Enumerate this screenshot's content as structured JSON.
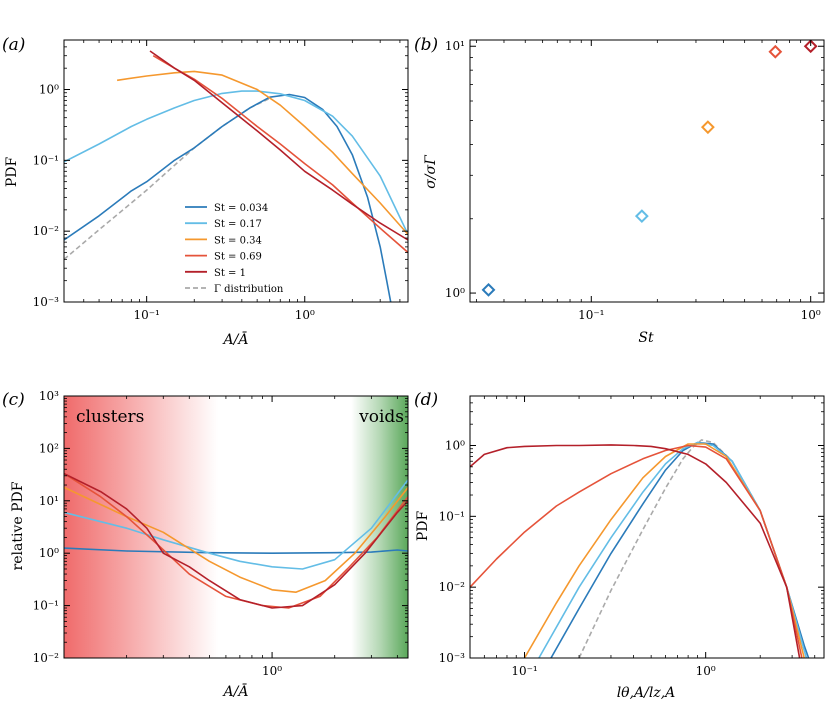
{
  "colors": {
    "St0.034": "#2b7bba",
    "St0.17": "#63bde6",
    "St0.34": "#f5982e",
    "St0.69": "#e5533a",
    "St1": "#b4202a",
    "gamma": "#aaaaaa",
    "clusters": "#f06b6b",
    "voids": "#5aa85a"
  },
  "chart_data": [
    {
      "id": "a",
      "type": "line",
      "panel_label": "(a)",
      "xlabel": "A/Ā",
      "ylabel": "PDF",
      "xscale": "log",
      "yscale": "log",
      "xlim": [
        0.03,
        4.5
      ],
      "ylim": [
        0.001,
        5
      ],
      "xticks": [
        {
          "v": 0.1,
          "label": "10⁻¹"
        },
        {
          "v": 1,
          "label": "10⁰"
        }
      ],
      "yticks": [
        {
          "v": 0.001,
          "label": "10⁻³"
        },
        {
          "v": 0.01,
          "label": "10⁻²"
        },
        {
          "v": 0.1,
          "label": "10⁻¹"
        },
        {
          "v": 1,
          "label": "10⁰"
        }
      ],
      "legend": {
        "position": "lower-center",
        "entries": [
          {
            "label": "St = 0.034",
            "color_key": "St0.034",
            "dash": false
          },
          {
            "label": "St = 0.17",
            "color_key": "St0.17",
            "dash": false
          },
          {
            "label": "St = 0.34",
            "color_key": "St0.34",
            "dash": false
          },
          {
            "label": "St = 0.69",
            "color_key": "St0.69",
            "dash": false
          },
          {
            "label": "St = 1",
            "color_key": "St1",
            "dash": false
          },
          {
            "label": "Γ distribution",
            "color_key": "gamma",
            "dash": true
          }
        ]
      },
      "series": [
        {
          "name": "gamma",
          "color_key": "gamma",
          "dash": true,
          "x": [
            0.03,
            0.05,
            0.08,
            0.1,
            0.15,
            0.2,
            0.3,
            0.45,
            0.6
          ],
          "y": [
            0.004,
            0.0105,
            0.025,
            0.038,
            0.085,
            0.15,
            0.3,
            0.55,
            0.75
          ]
        },
        {
          "name": "St = 0.034",
          "color_key": "St0.034",
          "dash": false,
          "x": [
            0.03,
            0.05,
            0.08,
            0.1,
            0.15,
            0.2,
            0.3,
            0.45,
            0.6,
            0.8,
            1.0,
            1.3,
            1.6,
            2.0,
            2.5,
            3.0,
            3.3,
            3.5
          ],
          "y": [
            0.0075,
            0.0165,
            0.037,
            0.05,
            0.1,
            0.15,
            0.3,
            0.55,
            0.78,
            0.85,
            0.77,
            0.52,
            0.3,
            0.12,
            0.03,
            0.006,
            0.002,
            0.001
          ]
        },
        {
          "name": "St = 0.17",
          "color_key": "St0.17",
          "dash": false,
          "x": [
            0.03,
            0.05,
            0.08,
            0.1,
            0.15,
            0.2,
            0.3,
            0.4,
            0.5,
            0.7,
            1.0,
            1.5,
            2.0,
            3.0,
            4.5
          ],
          "y": [
            0.095,
            0.17,
            0.3,
            0.38,
            0.55,
            0.7,
            0.88,
            0.95,
            0.95,
            0.87,
            0.7,
            0.42,
            0.22,
            0.06,
            0.009
          ]
        },
        {
          "name": "St = 0.34",
          "color_key": "St0.34",
          "dash": false,
          "x": [
            0.065,
            0.1,
            0.15,
            0.2,
            0.3,
            0.5,
            0.7,
            1.0,
            1.5,
            2.0,
            3.0,
            4.5
          ],
          "y": [
            1.35,
            1.55,
            1.72,
            1.8,
            1.6,
            1.0,
            0.6,
            0.3,
            0.13,
            0.065,
            0.025,
            0.009
          ]
        },
        {
          "name": "St = 0.69",
          "color_key": "St0.69",
          "dash": false,
          "x": [
            0.11,
            0.15,
            0.2,
            0.3,
            0.5,
            0.7,
            1.0,
            1.5,
            2.0,
            3.0,
            4.5
          ],
          "y": [
            3.0,
            2.0,
            1.4,
            0.75,
            0.3,
            0.17,
            0.09,
            0.045,
            0.025,
            0.011,
            0.005
          ]
        },
        {
          "name": "St = 1",
          "color_key": "St1",
          "dash": false,
          "x": [
            0.105,
            0.15,
            0.2,
            0.3,
            0.5,
            0.7,
            1.0,
            1.5,
            2.0,
            3.0,
            4.5
          ],
          "y": [
            3.5,
            2.0,
            1.35,
            0.65,
            0.26,
            0.14,
            0.07,
            0.038,
            0.024,
            0.013,
            0.0075
          ]
        }
      ]
    },
    {
      "id": "b",
      "type": "scatter",
      "panel_label": "(b)",
      "xlabel": "St",
      "ylabel": "σ/σΓ",
      "xscale": "log",
      "yscale": "log",
      "xlim": [
        0.028,
        1.15
      ],
      "ylim": [
        0.92,
        10.6
      ],
      "xticks": [
        {
          "v": 0.1,
          "label": "10⁻¹"
        },
        {
          "v": 1,
          "label": "10⁰"
        }
      ],
      "yticks": [
        {
          "v": 1,
          "label": "10⁰"
        },
        {
          "v": 10,
          "label": "10¹"
        }
      ],
      "points": [
        {
          "x": 0.034,
          "y": 1.03,
          "color_key": "St0.034"
        },
        {
          "x": 0.17,
          "y": 2.05,
          "color_key": "St0.17"
        },
        {
          "x": 0.34,
          "y": 4.7,
          "color_key": "St0.34"
        },
        {
          "x": 0.69,
          "y": 9.5,
          "color_key": "St0.69"
        },
        {
          "x": 1.0,
          "y": 10.0,
          "color_key": "St1"
        }
      ]
    },
    {
      "id": "c",
      "type": "line",
      "panel_label": "(c)",
      "xlabel": "A/Ā",
      "ylabel": "relative PDF",
      "xscale": "log",
      "yscale": "log",
      "xlim": [
        0.1,
        4.5
      ],
      "ylim": [
        0.01,
        1000
      ],
      "xticks": [
        {
          "v": 1,
          "label": "10⁰"
        }
      ],
      "yticks": [
        {
          "v": 0.01,
          "label": "10⁻²"
        },
        {
          "v": 0.1,
          "label": "10⁻¹"
        },
        {
          "v": 1,
          "label": "10⁰"
        },
        {
          "v": 10,
          "label": "10¹"
        },
        {
          "v": 100,
          "label": "10²"
        },
        {
          "v": 1000,
          "label": "10³"
        }
      ],
      "regions": [
        {
          "label": "clusters",
          "from": 0.1,
          "to": 0.55,
          "color_key": "clusters",
          "fade": "right"
        },
        {
          "label": "voids",
          "from": 2.4,
          "to": 4.5,
          "color_key": "voids",
          "fade": "left"
        }
      ],
      "series": [
        {
          "name": "St = 0.034",
          "color_key": "St0.034",
          "x": [
            0.1,
            0.2,
            0.5,
            1.0,
            2.0,
            3.0,
            4.0,
            4.5
          ],
          "y": [
            1.25,
            1.1,
            1.02,
            1.0,
            1.02,
            1.05,
            1.15,
            1.1
          ]
        },
        {
          "name": "St = 0.17",
          "color_key": "St0.17",
          "x": [
            0.1,
            0.2,
            0.3,
            0.5,
            0.7,
            1.0,
            1.4,
            2.0,
            3.0,
            4.5
          ],
          "y": [
            6,
            3.0,
            1.8,
            1.0,
            0.7,
            0.55,
            0.5,
            0.75,
            3.0,
            25
          ]
        },
        {
          "name": "St = 0.34",
          "color_key": "St0.34",
          "x": [
            0.1,
            0.15,
            0.2,
            0.3,
            0.5,
            0.7,
            1.0,
            1.3,
            1.8,
            2.5,
            3.5,
            4.5
          ],
          "y": [
            18,
            8.5,
            5,
            2.5,
            0.7,
            0.35,
            0.2,
            0.18,
            0.3,
            1.0,
            5.0,
            18
          ]
        },
        {
          "name": "St = 0.69",
          "color_key": "St0.69",
          "x": [
            0.1,
            0.15,
            0.2,
            0.28,
            0.4,
            0.6,
            0.9,
            1.2,
            1.7,
            2.3,
            3.2,
            4.5
          ],
          "y": [
            33,
            12,
            5,
            1.5,
            0.4,
            0.15,
            0.1,
            0.09,
            0.15,
            0.5,
            2.0,
            12
          ]
        },
        {
          "name": "St = 1",
          "color_key": "St1",
          "x": [
            0.1,
            0.15,
            0.2,
            0.25,
            0.3,
            0.4,
            0.5,
            0.7,
            1.0,
            1.4,
            2.0,
            2.8,
            4.0,
            4.5
          ],
          "y": [
            33,
            15,
            7,
            3,
            1.0,
            0.55,
            0.3,
            0.13,
            0.09,
            0.1,
            0.25,
            1.0,
            6,
            10
          ]
        }
      ]
    },
    {
      "id": "d",
      "type": "line",
      "panel_label": "(d)",
      "xlabel": "lθ,A/lz,A",
      "ylabel": "PDF",
      "xscale": "log",
      "yscale": "log",
      "xlim": [
        0.05,
        4.5
      ],
      "ylim": [
        0.001,
        5
      ],
      "xticks": [
        {
          "v": 0.1,
          "label": "10⁻¹"
        },
        {
          "v": 1,
          "label": "10⁰"
        }
      ],
      "yticks": [
        {
          "v": 0.001,
          "label": "10⁻³"
        },
        {
          "v": 0.01,
          "label": "10⁻²"
        },
        {
          "v": 0.1,
          "label": "10⁻¹"
        },
        {
          "v": 1,
          "label": "10⁰"
        }
      ],
      "series": [
        {
          "name": "gamma",
          "color_key": "gamma",
          "dash": true,
          "x": [
            0.2,
            0.3,
            0.45,
            0.6,
            0.75,
            0.85,
            0.95,
            1.1,
            1.4,
            2.0,
            2.8,
            3.6
          ],
          "y": [
            0.001,
            0.009,
            0.065,
            0.25,
            0.65,
            0.95,
            1.2,
            1.1,
            0.6,
            0.12,
            0.01,
            0.001
          ]
        },
        {
          "name": "St = 0.034",
          "color_key": "St0.034",
          "dash": false,
          "x": [
            0.14,
            0.2,
            0.3,
            0.45,
            0.6,
            0.75,
            0.9,
            1.1,
            1.4,
            2.0,
            2.8,
            3.5,
            3.7
          ],
          "y": [
            0.001,
            0.005,
            0.03,
            0.15,
            0.45,
            0.85,
            1.1,
            1.05,
            0.6,
            0.12,
            0.01,
            0.0015,
            0.001
          ]
        },
        {
          "name": "St = 0.17",
          "color_key": "St0.17",
          "dash": false,
          "x": [
            0.12,
            0.2,
            0.3,
            0.45,
            0.6,
            0.75,
            0.9,
            1.1,
            1.4,
            2.0,
            2.8,
            3.6
          ],
          "y": [
            0.001,
            0.01,
            0.05,
            0.22,
            0.55,
            0.9,
            1.1,
            1.0,
            0.6,
            0.12,
            0.01,
            0.001
          ]
        },
        {
          "name": "St = 0.34",
          "color_key": "St0.34",
          "dash": false,
          "x": [
            0.1,
            0.15,
            0.2,
            0.3,
            0.45,
            0.6,
            0.8,
            1.0,
            1.3,
            2.0,
            2.8,
            3.5
          ],
          "y": [
            0.001,
            0.006,
            0.02,
            0.09,
            0.35,
            0.7,
            1.05,
            1.05,
            0.7,
            0.12,
            0.01,
            0.001
          ]
        },
        {
          "name": "St = 0.69",
          "color_key": "St0.69",
          "dash": false,
          "x": [
            0.05,
            0.07,
            0.1,
            0.15,
            0.2,
            0.3,
            0.45,
            0.6,
            0.8,
            1.0,
            1.3,
            2.0,
            2.8,
            3.4
          ],
          "y": [
            0.01,
            0.025,
            0.06,
            0.14,
            0.22,
            0.4,
            0.65,
            0.85,
            1.0,
            0.95,
            0.65,
            0.12,
            0.01,
            0.001
          ]
        },
        {
          "name": "St = 1",
          "color_key": "St1",
          "dash": false,
          "x": [
            0.05,
            0.06,
            0.08,
            0.1,
            0.15,
            0.2,
            0.3,
            0.4,
            0.5,
            0.6,
            0.8,
            1.0,
            1.3,
            2.0,
            2.8,
            3.3
          ],
          "y": [
            0.5,
            0.75,
            0.93,
            0.97,
            1.0,
            1.0,
            1.02,
            1.0,
            0.97,
            0.9,
            0.75,
            0.55,
            0.3,
            0.08,
            0.01,
            0.001
          ]
        }
      ]
    }
  ]
}
